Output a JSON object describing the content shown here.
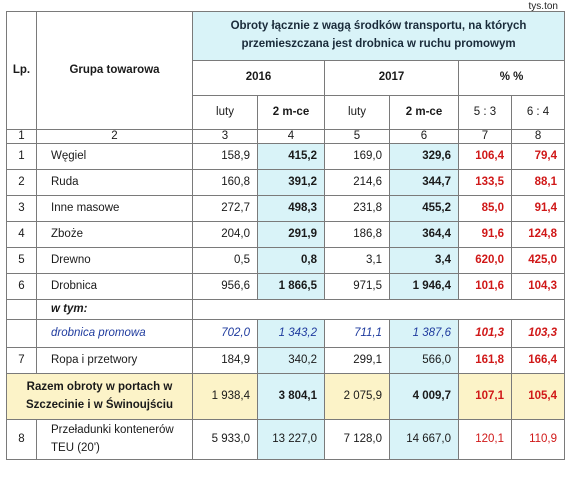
{
  "unit": "tys.ton",
  "header": {
    "lp": "Lp.",
    "group": "Grupa towarowa",
    "title": "Obroty łącznie z wagą środków transportu, na których przemieszczana jest drobnica w ruchu promowym",
    "year1": "2016",
    "year2": "2017",
    "pct": "% %",
    "sub": [
      "luty",
      "2 m-ce",
      "luty",
      "2 m-ce",
      "5 : 3",
      "6 : 4"
    ]
  },
  "colnums": [
    "1",
    "2",
    "3",
    "4",
    "5",
    "6",
    "7",
    "8"
  ],
  "rows": [
    {
      "lp": "1",
      "name": "Węgiel",
      "v": [
        "158,9",
        "415,2",
        "169,0",
        "329,6",
        "106,4",
        "79,4"
      ]
    },
    {
      "lp": "2",
      "name": "Ruda",
      "v": [
        "160,8",
        "391,2",
        "214,6",
        "344,7",
        "133,5",
        "88,1"
      ]
    },
    {
      "lp": "3",
      "name": "Inne masowe",
      "v": [
        "272,7",
        "498,3",
        "231,8",
        "455,2",
        "85,0",
        "91,4"
      ]
    },
    {
      "lp": "4",
      "name": "Zboże",
      "v": [
        "204,0",
        "291,9",
        "186,8",
        "364,4",
        "91,6",
        "124,8"
      ]
    },
    {
      "lp": "5",
      "name": "Drewno",
      "v": [
        "0,5",
        "0,8",
        "3,1",
        "3,4",
        "620,0",
        "425,0"
      ]
    },
    {
      "lp": "6",
      "name": "Drobnica",
      "v": [
        "956,6",
        "1 866,5",
        "971,5",
        "1 946,4",
        "101,6",
        "104,3"
      ]
    },
    {
      "lp": "7",
      "name": "Ropa i przetwory",
      "v": [
        "184,9",
        "340,2",
        "299,1",
        "566,0",
        "161,8",
        "166,4"
      ]
    }
  ],
  "wtym": "w tym:",
  "promo": {
    "name": "drobnica promowa",
    "v": [
      "702,0",
      "1 343,2",
      "711,1",
      "1 387,6",
      "101,3",
      "103,3"
    ]
  },
  "total": {
    "name": "Razem obroty w portach w Szczecinie i w Świnoujściu",
    "v": [
      "1 938,4",
      "3 804,1",
      "2 075,9",
      "4 009,7",
      "107,1",
      "105,4"
    ]
  },
  "teu": {
    "lp": "8",
    "name": "Przeładunki kontenerów TEU (20')",
    "v": [
      "5 933,0",
      "13 227,0",
      "7 128,0",
      "14 667,0",
      "120,1",
      "110,9"
    ]
  }
}
